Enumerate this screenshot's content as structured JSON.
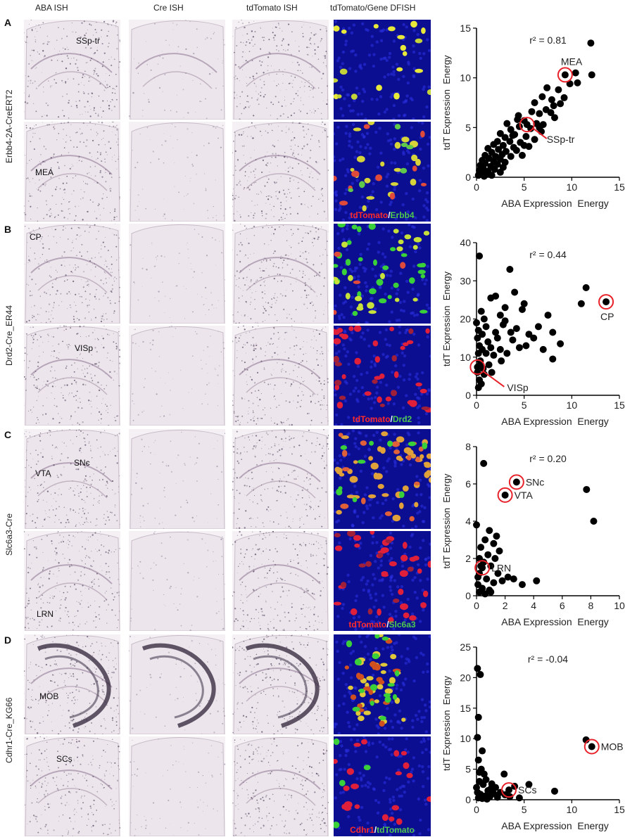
{
  "column_headers": [
    "ABA ISH",
    "Cre ISH",
    "tdTomato ISH",
    "tdTomato/Gene DFISH"
  ],
  "rows": [
    {
      "letter": "A",
      "line": "Erbb4-2A-CreERT2",
      "top_labels": [
        "SSp-tr"
      ],
      "bottom_labels": [
        "MEA"
      ],
      "fish_caption": {
        "first": "tdTomato",
        "sep": "/",
        "second": "Erbb4",
        "first_color": "#ff2a2a",
        "second_color": "#4fc84f"
      },
      "fish_top_style": "yellow",
      "fish_bottom_style": "mixed"
    },
    {
      "letter": "B",
      "line": "Drd2-Cre_ER44",
      "top_labels": [
        "CP"
      ],
      "bottom_labels": [
        "VISp"
      ],
      "fish_caption": {
        "first": "tdTomato",
        "sep": "/",
        "second": "Drd2",
        "first_color": "#ff2a2a",
        "second_color": "#4fc84f"
      },
      "fish_top_style": "green",
      "fish_bottom_style": "red"
    },
    {
      "letter": "C",
      "line": "Slc6a3-Cre",
      "top_labels": [
        "VTA",
        "SNc"
      ],
      "bottom_labels": [
        "LRN"
      ],
      "fish_caption": {
        "first": "tdTomato",
        "sep": "/",
        "second": "Slc6a3",
        "first_color": "#ff2a2a",
        "second_color": "#4fc84f"
      },
      "fish_top_style": "orange",
      "fish_bottom_style": "red"
    },
    {
      "letter": "D",
      "line": "Cdhr1-Cre_KG66",
      "top_labels": [
        "MOB"
      ],
      "bottom_labels": [
        "SCs"
      ],
      "fish_caption": {
        "first": "Cdhr1",
        "sep": "/",
        "second": "tdTomato",
        "first_color": "#ff2a2a",
        "second_color": "#4fc84f"
      },
      "fish_top_style": "band",
      "fish_bottom_style": "sparse"
    }
  ],
  "chart_data": [
    {
      "type": "scatter",
      "panel": "A",
      "annotation": "r² = 0.81",
      "xlabel": "ABA Expression  Energy",
      "ylabel": "tdT Expression  Energy",
      "xlim": [
        0,
        15
      ],
      "ylim": [
        0,
        15
      ],
      "xticks": [
        0,
        5,
        10,
        15
      ],
      "yticks": [
        0,
        5,
        10,
        15
      ],
      "highlighted": [
        {
          "label": "MEA",
          "x": 9.3,
          "y": 10.3
        },
        {
          "label": "SSp-tr",
          "x": 5.3,
          "y": 5.3
        }
      ],
      "points": [
        [
          12,
          13.5
        ],
        [
          12.1,
          10.3
        ],
        [
          10.4,
          10.5
        ],
        [
          10.6,
          9.5
        ],
        [
          9.8,
          9.4
        ],
        [
          7.4,
          9.0
        ],
        [
          8.6,
          8.8
        ],
        [
          6.9,
          8.1
        ],
        [
          7.9,
          7.8
        ],
        [
          6.1,
          7.5
        ],
        [
          8.1,
          7.2
        ],
        [
          7.3,
          6.8
        ],
        [
          5.8,
          6.6
        ],
        [
          6.6,
          6.4
        ],
        [
          4.4,
          6.2
        ],
        [
          8.2,
          6.0
        ],
        [
          5.0,
          5.7
        ],
        [
          3.2,
          5.4
        ],
        [
          6.3,
          5.4
        ],
        [
          7.0,
          5.3
        ],
        [
          4.5,
          5.1
        ],
        [
          5.7,
          4.9
        ],
        [
          3.6,
          4.8
        ],
        [
          6.8,
          4.6
        ],
        [
          2.5,
          4.4
        ],
        [
          4.0,
          4.3
        ],
        [
          5.2,
          4.1
        ],
        [
          3.0,
          4.0
        ],
        [
          6.1,
          3.8
        ],
        [
          2.2,
          3.6
        ],
        [
          3.5,
          3.6
        ],
        [
          4.6,
          3.5
        ],
        [
          1.8,
          3.3
        ],
        [
          2.8,
          3.2
        ],
        [
          5.0,
          3.2
        ],
        [
          3.9,
          3.0
        ],
        [
          1.2,
          2.9
        ],
        [
          2.3,
          2.8
        ],
        [
          4.2,
          2.7
        ],
        [
          3.1,
          2.6
        ],
        [
          1.6,
          2.5
        ],
        [
          2.7,
          2.3
        ],
        [
          0.9,
          2.2
        ],
        [
          2.0,
          2.1
        ],
        [
          3.6,
          2.1
        ],
        [
          1.3,
          1.9
        ],
        [
          2.5,
          1.8
        ],
        [
          0.6,
          1.7
        ],
        [
          1.8,
          1.6
        ],
        [
          3.0,
          1.5
        ],
        [
          0.9,
          1.4
        ],
        [
          2.2,
          1.3
        ],
        [
          0.4,
          1.2
        ],
        [
          1.5,
          1.1
        ],
        [
          2.8,
          1.0
        ],
        [
          0.7,
          0.9
        ],
        [
          1.9,
          0.8
        ],
        [
          0.3,
          0.7
        ],
        [
          1.2,
          0.6
        ],
        [
          2.5,
          0.5
        ],
        [
          0.5,
          0.4
        ],
        [
          1.0,
          0.3
        ],
        [
          0.2,
          0.2
        ],
        [
          1.6,
          0.2
        ],
        [
          0.8,
          0.1
        ],
        [
          4.8,
          2.2
        ],
        [
          5.5,
          3.1
        ],
        [
          6.6,
          5.0
        ],
        [
          7.8,
          6.5
        ],
        [
          8.8,
          7.4
        ],
        [
          9.2,
          8.0
        ],
        [
          4.3,
          5.8
        ],
        [
          3.8,
          4.2
        ]
      ]
    },
    {
      "type": "scatter",
      "panel": "B",
      "annotation": "r² = 0.44",
      "xlabel": "ABA Expression  Energy",
      "ylabel": "tdT Expression  Energy",
      "xlim": [
        0,
        15
      ],
      "ylim": [
        0,
        40
      ],
      "xticks": [
        0,
        5,
        10,
        15
      ],
      "yticks": [
        0,
        10,
        20,
        30,
        40
      ],
      "highlighted": [
        {
          "label": "CP",
          "x": 13.6,
          "y": 24.5
        },
        {
          "label": "VISp",
          "x": 0.1,
          "y": 7.4
        }
      ],
      "points": [
        [
          0.3,
          36.5
        ],
        [
          11.5,
          28.2
        ],
        [
          11.0,
          24.0
        ],
        [
          3.5,
          33.0
        ],
        [
          4.0,
          27.0
        ],
        [
          5.0,
          24.0
        ],
        [
          4.8,
          22.5
        ],
        [
          3.0,
          23.0
        ],
        [
          2.5,
          21.0
        ],
        [
          7.5,
          21.0
        ],
        [
          6.5,
          18.0
        ],
        [
          8.0,
          16.5
        ],
        [
          8.8,
          13.5
        ],
        [
          5.5,
          16.0
        ],
        [
          2.0,
          26.0
        ],
        [
          1.5,
          25.5
        ],
        [
          6.0,
          15.0
        ],
        [
          4.2,
          17.5
        ],
        [
          2.8,
          18.5
        ],
        [
          3.8,
          14.5
        ],
        [
          5.2,
          13.0
        ],
        [
          7.0,
          12.0
        ],
        [
          8.0,
          9.5
        ],
        [
          2.2,
          15.0
        ],
        [
          1.0,
          18.0
        ],
        [
          1.2,
          14.0
        ],
        [
          0.8,
          20.0
        ],
        [
          0.5,
          22.0
        ],
        [
          0.6,
          16.0
        ],
        [
          0.3,
          13.0
        ],
        [
          0.2,
          11.0
        ],
        [
          0.4,
          9.0
        ],
        [
          0.1,
          6.0
        ],
        [
          0.3,
          4.0
        ],
        [
          0.2,
          2.0
        ],
        [
          0.5,
          3.0
        ],
        [
          0.8,
          5.5
        ],
        [
          1.3,
          8.0
        ],
        [
          1.8,
          10.5
        ],
        [
          2.5,
          12.0
        ],
        [
          3.2,
          11.0
        ],
        [
          4.5,
          12.5
        ],
        [
          0.6,
          12.0
        ],
        [
          1.0,
          11.0
        ],
        [
          1.5,
          12.5
        ],
        [
          0.1,
          15.0
        ],
        [
          0.2,
          17.0
        ],
        [
          0.0,
          19.0
        ],
        [
          0.4,
          8.0
        ],
        [
          0.7,
          7.0
        ],
        [
          1.6,
          6.0
        ],
        [
          2.0,
          16.5
        ],
        [
          3.0,
          19.5
        ],
        [
          3.6,
          16.5
        ],
        [
          2.6,
          9.0
        ]
      ]
    },
    {
      "type": "scatter",
      "panel": "C",
      "annotation": "r² = 0.20",
      "xlabel": "ABA Expression  Energy",
      "ylabel": "tdT Expression  Energy",
      "xlim": [
        0,
        10
      ],
      "ylim": [
        0,
        8
      ],
      "xticks": [
        0,
        2,
        4,
        6,
        8,
        10
      ],
      "yticks": [
        0,
        2,
        4,
        6,
        8
      ],
      "highlighted": [
        {
          "label": "SNc",
          "x": 2.8,
          "y": 6.1
        },
        {
          "label": "VTA",
          "x": 2.0,
          "y": 5.4
        },
        {
          "label": "LRN",
          "x": 0.4,
          "y": 1.5
        }
      ],
      "points": [
        [
          0.5,
          7.1
        ],
        [
          7.7,
          5.7
        ],
        [
          8.2,
          4.0
        ],
        [
          1.4,
          3.2
        ],
        [
          1.2,
          2.8
        ],
        [
          0.9,
          3.5
        ],
        [
          0.6,
          3.0
        ],
        [
          0.3,
          2.6
        ],
        [
          0.8,
          2.2
        ],
        [
          1.6,
          2.4
        ],
        [
          0.2,
          2.0
        ],
        [
          0.5,
          1.8
        ],
        [
          1.0,
          1.6
        ],
        [
          1.5,
          1.2
        ],
        [
          0.2,
          1.2
        ],
        [
          0.7,
          0.9
        ],
        [
          1.2,
          0.7
        ],
        [
          0.1,
          0.6
        ],
        [
          0.4,
          0.4
        ],
        [
          0.9,
          0.3
        ],
        [
          0.2,
          0.2
        ],
        [
          1.8,
          0.8
        ],
        [
          2.2,
          1.0
        ],
        [
          2.6,
          0.9
        ],
        [
          3.2,
          0.6
        ],
        [
          4.2,
          0.8
        ],
        [
          0.6,
          0.1
        ],
        [
          1.0,
          0.2
        ],
        [
          0.3,
          1.6
        ],
        [
          1.3,
          2.0
        ],
        [
          0.0,
          3.8
        ],
        [
          0.1,
          1.0
        ]
      ]
    },
    {
      "type": "scatter",
      "panel": "D",
      "annotation": "r² = -0.04",
      "xlabel": "ABA Expression  Energy",
      "ylabel": "tdT Expression  Energy",
      "xlim": [
        0,
        15
      ],
      "ylim": [
        0,
        25
      ],
      "xticks": [
        0,
        5,
        10,
        15
      ],
      "yticks": [
        0,
        5,
        10,
        15,
        20,
        25
      ],
      "highlighted": [
        {
          "label": "MOB",
          "x": 12.1,
          "y": 8.7
        },
        {
          "label": "SCs",
          "x": 3.4,
          "y": 1.6
        }
      ],
      "points": [
        [
          0.1,
          21.5
        ],
        [
          0.4,
          20.5
        ],
        [
          0.2,
          13.5
        ],
        [
          0.1,
          10.2
        ],
        [
          11.5,
          9.8
        ],
        [
          0.6,
          8.0
        ],
        [
          0.2,
          6.5
        ],
        [
          0.5,
          5.0
        ],
        [
          0.8,
          4.2
        ],
        [
          1.0,
          3.3
        ],
        [
          2.9,
          4.2
        ],
        [
          4.0,
          2.2
        ],
        [
          5.5,
          2.5
        ],
        [
          8.2,
          1.4
        ],
        [
          2.0,
          2.0
        ],
        [
          1.5,
          1.8
        ],
        [
          0.3,
          3.0
        ],
        [
          0.7,
          2.5
        ],
        [
          1.2,
          1.5
        ],
        [
          1.8,
          1.0
        ],
        [
          2.5,
          1.2
        ],
        [
          3.0,
          0.8
        ],
        [
          0.1,
          1.2
        ],
        [
          0.4,
          0.9
        ],
        [
          0.9,
          0.6
        ],
        [
          1.4,
          0.5
        ],
        [
          2.2,
          0.4
        ],
        [
          3.5,
          0.5
        ],
        [
          4.5,
          0.3
        ],
        [
          0.2,
          0.3
        ],
        [
          0.6,
          0.2
        ],
        [
          1.1,
          0.1
        ],
        [
          0.3,
          4.5
        ],
        [
          0.0,
          2.0
        ],
        [
          1.6,
          2.6
        ]
      ]
    }
  ]
}
